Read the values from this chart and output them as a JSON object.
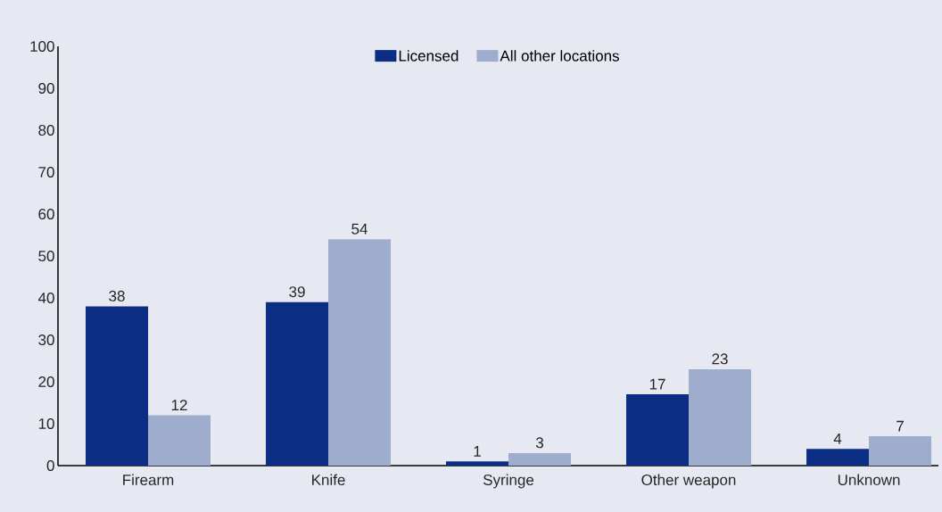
{
  "chart_data": {
    "type": "bar",
    "categories": [
      "Firearm",
      "Knife",
      "Syringe",
      "Other weapon",
      "Unknown"
    ],
    "series": [
      {
        "name": "Licensed",
        "color": "#0b2e84",
        "values": [
          38,
          39,
          1,
          17,
          4
        ]
      },
      {
        "name": "All other locations",
        "color": "#9eadce",
        "values": [
          12,
          54,
          3,
          23,
          7
        ]
      }
    ],
    "ylim": [
      0,
      100
    ],
    "yticks": [
      0,
      10,
      20,
      30,
      40,
      50,
      60,
      70,
      80,
      90,
      100
    ],
    "data_labels": true,
    "legend": "top",
    "grid": false
  }
}
